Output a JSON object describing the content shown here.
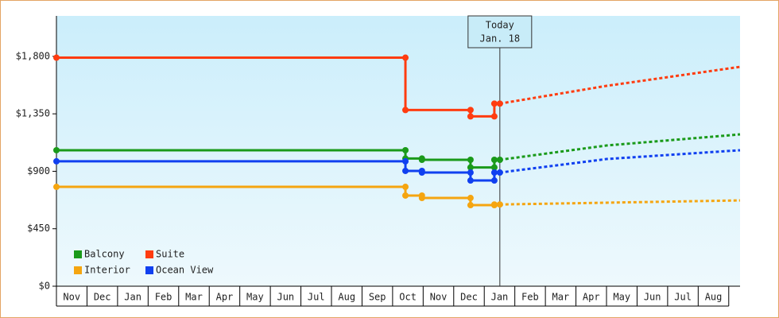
{
  "chart_data": {
    "type": "step-line",
    "categories": [
      "Nov",
      "Dec",
      "Jan",
      "Feb",
      "Mar",
      "Apr",
      "May",
      "Jun",
      "Jul",
      "Aug",
      "Sep",
      "Oct",
      "Nov",
      "Dec",
      "Jan",
      "Feb",
      "Mar",
      "Apr",
      "May",
      "Jun",
      "Jul",
      "Aug"
    ],
    "xlim": [
      0,
      22.37
    ],
    "ylim": [
      0,
      2117
    ],
    "yticks": [
      {
        "value": 0,
        "label": "$0"
      },
      {
        "value": 450,
        "label": "$450"
      },
      {
        "value": 900,
        "label": "$900"
      },
      {
        "value": 1350,
        "label": "$1,350"
      },
      {
        "value": 1800,
        "label": "$1,800"
      }
    ],
    "legend": "bottom-left",
    "series": [
      {
        "name": "Balcony",
        "color": "#1a9a1a",
        "x": [
          0,
          11.42,
          11.42,
          11.96,
          11.96,
          13.55,
          13.55,
          14.33,
          14.33,
          14.51
        ],
        "values": [
          1065,
          1065,
          1000,
          1000,
          990,
          990,
          930,
          930,
          990,
          990
        ],
        "forecast": {
          "x": [
            14.51,
            18,
            22.37
          ],
          "values": [
            990,
            1102,
            1189
          ]
        }
      },
      {
        "name": "Suite",
        "color": "#ff3c10",
        "x": [
          0,
          11.42,
          11.42,
          13.55,
          13.55,
          14.33,
          14.33,
          14.51
        ],
        "values": [
          1790,
          1790,
          1380,
          1380,
          1330,
          1330,
          1430,
          1430
        ],
        "forecast": {
          "x": [
            14.51,
            18,
            22.37
          ],
          "values": [
            1430,
            1569,
            1718
          ]
        }
      },
      {
        "name": "Interior",
        "color": "#f5a510",
        "x": [
          0,
          11.42,
          11.42,
          11.96,
          11.96,
          13.55,
          13.55,
          14.33,
          14.33,
          14.51
        ],
        "values": [
          778,
          778,
          710,
          710,
          691,
          691,
          635,
          635,
          640,
          640
        ],
        "forecast": {
          "x": [
            14.51,
            18,
            22.37
          ],
          "values": [
            640,
            654,
            672
          ]
        }
      },
      {
        "name": "Ocean View",
        "color": "#1040f0",
        "x": [
          0,
          11.42,
          11.42,
          11.96,
          11.96,
          13.55,
          13.55,
          14.33,
          14.33,
          14.51
        ],
        "values": [
          978,
          978,
          903,
          903,
          890,
          890,
          828,
          828,
          890,
          890
        ],
        "forecast": {
          "x": [
            14.51,
            18,
            22.37
          ],
          "values": [
            890,
            996,
            1065
          ]
        }
      }
    ],
    "annotations": [
      {
        "x": 14.51,
        "lines": [
          "Today",
          "Jan. 18"
        ]
      }
    ]
  }
}
